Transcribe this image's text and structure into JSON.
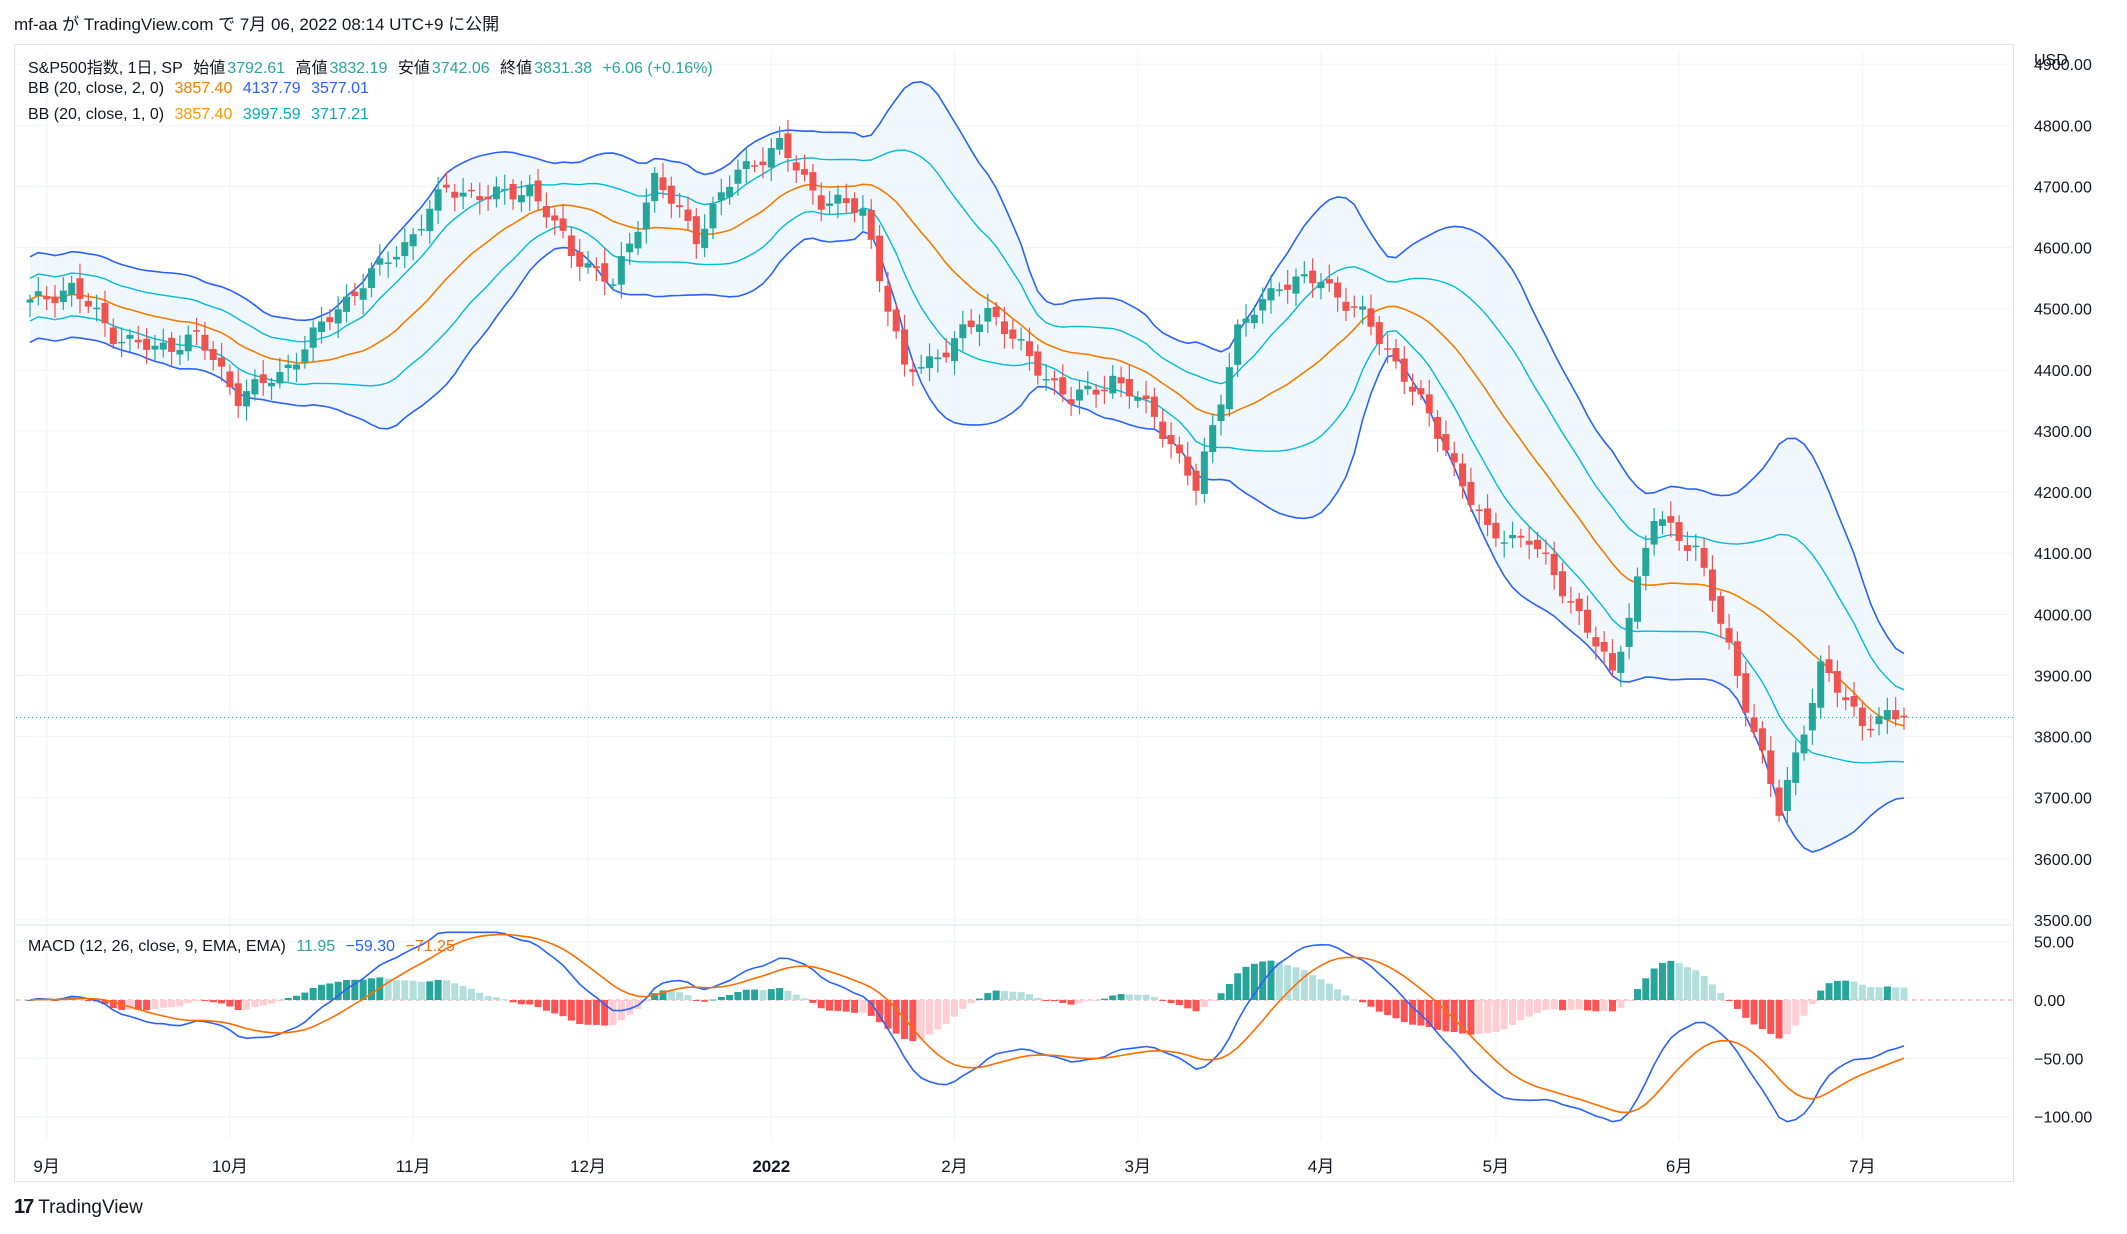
{
  "header": {
    "publish_line": "mf-aa が TradingView.com で 7月 06, 2022 08:14 UTC+9 に公開"
  },
  "legend": {
    "symbol": "S&P500指数, 1日, SP",
    "open_label": "始値",
    "open": "3792.61",
    "high_label": "高値",
    "high": "3832.19",
    "low_label": "安値",
    "low": "3742.06",
    "close_label": "終値",
    "close": "3831.38",
    "change": "+6.06 (+0.16%)",
    "bb2_label": "BB (20, close, 2, 0)",
    "bb2_mid": "3857.40",
    "bb2_up": "4137.79",
    "bb2_lo": "3577.01",
    "bb1_label": "BB (20, close, 1, 0)",
    "bb1_mid": "3857.40",
    "bb1_up": "3997.59",
    "bb1_lo": "3717.21",
    "macd_label": "MACD (12, 26, close, 9, EMA, EMA)",
    "macd_hist": "11.95",
    "macd_line": "−59.30",
    "macd_signal": "−71.25"
  },
  "axis": {
    "currency": "USD",
    "price_ticks": [
      "4900.00",
      "4800.00",
      "4700.00",
      "4600.00",
      "4500.00",
      "4400.00",
      "4300.00",
      "4200.00",
      "4100.00",
      "4000.00",
      "3900.00",
      "3800.00",
      "3700.00",
      "3600.00",
      "3500.00"
    ],
    "macd_ticks": [
      "50.00",
      "0.00",
      "−50.00",
      "−100.00"
    ],
    "time_labels": [
      "9月",
      "10月",
      "11月",
      "12月",
      "2022",
      "2月",
      "3月",
      "4月",
      "5月",
      "6月",
      "7月"
    ]
  },
  "footer": {
    "logo_glyph": "17",
    "brand": "TradingView"
  },
  "colors": {
    "up": "#26a69a",
    "down": "#ef5350",
    "bb2": "#2962ff",
    "bb1": "#00bcd4",
    "basis": "#f57c00",
    "macd": "#2962ff",
    "signal": "#ff6d00"
  },
  "chart_data": {
    "type": "candlestick",
    "symbol": "S&P500指数",
    "interval": "1日",
    "price_range": [
      3500,
      4920
    ],
    "macd_range": [
      -120,
      60
    ],
    "last_close": 3831.38,
    "weekly_closes": [
      [
        "2021-08-27",
        4509
      ],
      [
        "2021-09-03",
        4535
      ],
      [
        "2021-09-10",
        4458
      ],
      [
        "2021-09-17",
        4432
      ],
      [
        "2021-09-24",
        4455
      ],
      [
        "2021-10-01",
        4357
      ],
      [
        "2021-10-08",
        4391
      ],
      [
        "2021-10-15",
        4471
      ],
      [
        "2021-10-22",
        4544
      ],
      [
        "2021-10-29",
        4605
      ],
      [
        "2021-11-05",
        4697
      ],
      [
        "2021-11-12",
        4682
      ],
      [
        "2021-11-19",
        4697
      ],
      [
        "2021-11-26",
        4594
      ],
      [
        "2021-12-03",
        4538
      ],
      [
        "2021-12-10",
        4712
      ],
      [
        "2021-12-17",
        4620
      ],
      [
        "2021-12-24",
        4725
      ],
      [
        "2021-12-31",
        4766
      ],
      [
        "2022-01-07",
        4677
      ],
      [
        "2022-01-14",
        4662
      ],
      [
        "2022-01-21",
        4397
      ],
      [
        "2022-01-28",
        4431
      ],
      [
        "2022-02-04",
        4500
      ],
      [
        "2022-02-11",
        4418
      ],
      [
        "2022-02-18",
        4349
      ],
      [
        "2022-02-25",
        4385
      ],
      [
        "2022-03-04",
        4328
      ],
      [
        "2022-03-11",
        4204
      ],
      [
        "2022-03-18",
        4463
      ],
      [
        "2022-03-25",
        4543
      ],
      [
        "2022-04-01",
        4546
      ],
      [
        "2022-04-08",
        4488
      ],
      [
        "2022-04-14",
        4393
      ],
      [
        "2022-04-22",
        4272
      ],
      [
        "2022-04-29",
        4132
      ],
      [
        "2022-05-06",
        4123
      ],
      [
        "2022-05-13",
        4024
      ],
      [
        "2022-05-20",
        3901
      ],
      [
        "2022-05-27",
        4158
      ],
      [
        "2022-06-03",
        4109
      ],
      [
        "2022-06-10",
        3901
      ],
      [
        "2022-06-17",
        3675
      ],
      [
        "2022-06-24",
        3912
      ],
      [
        "2022-07-01",
        3825
      ],
      [
        "2022-07-05",
        3831
      ]
    ]
  }
}
